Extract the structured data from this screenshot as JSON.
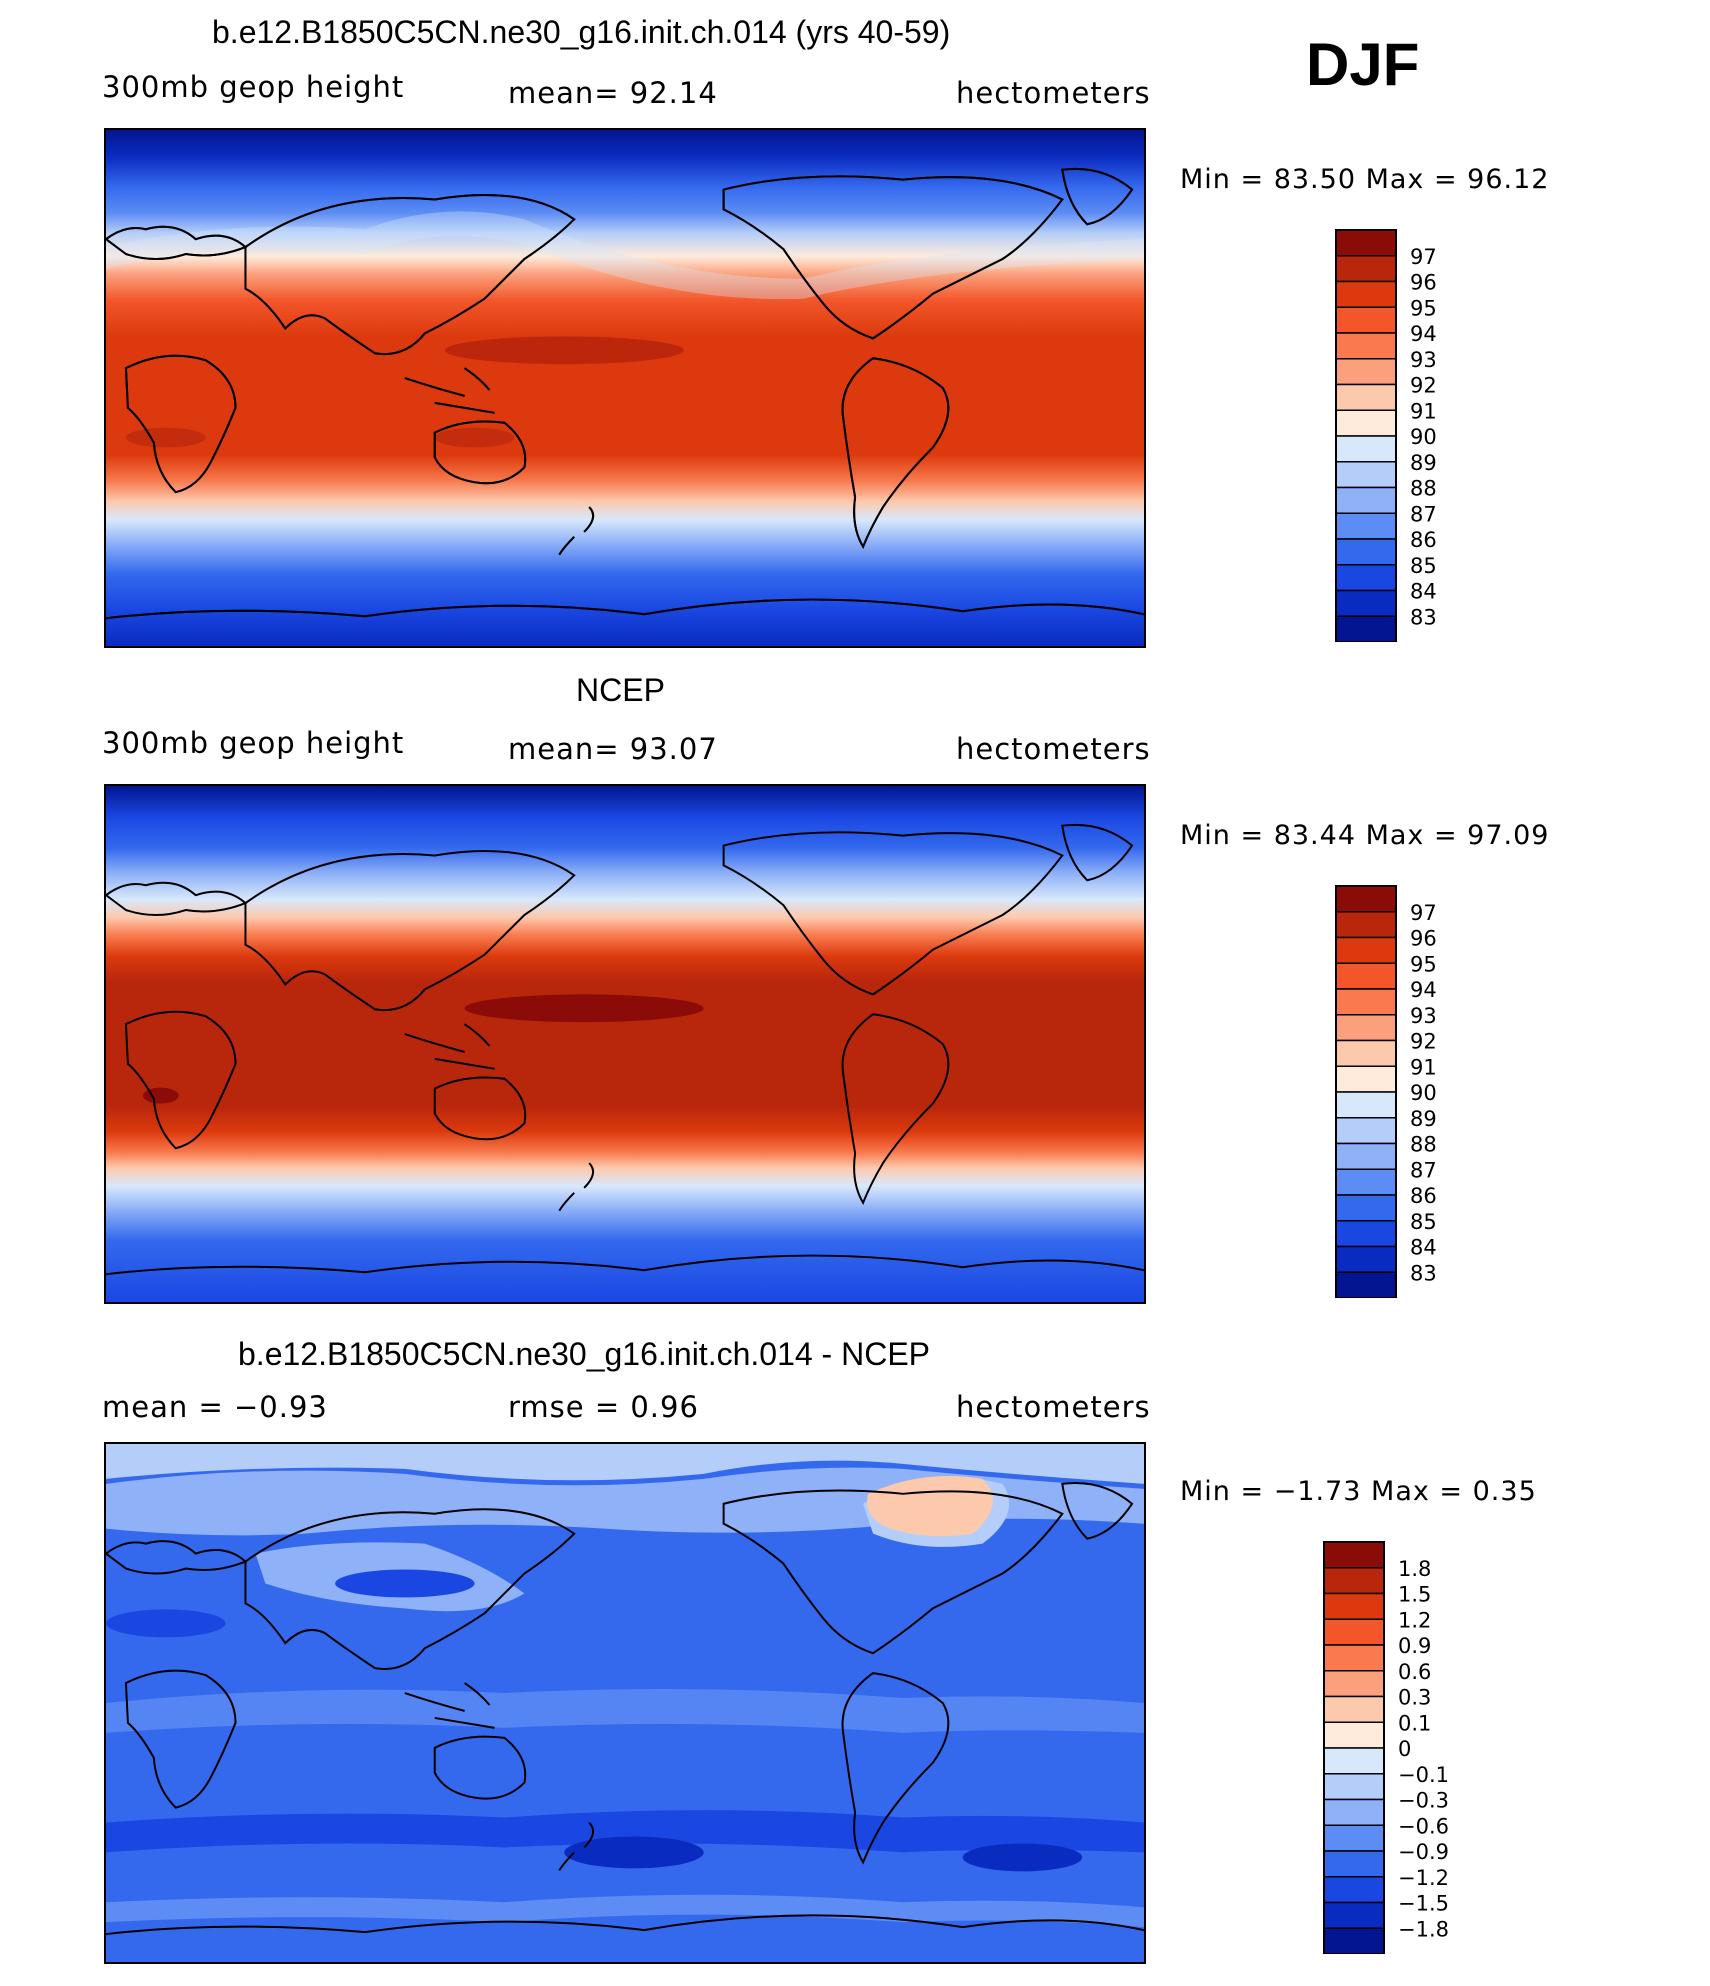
{
  "season": "DJF",
  "panels": [
    {
      "title": "b.e12.B1850C5CN.ne30_g16.init.ch.014 (yrs 40-59)",
      "left_label": "300mb  geop  height",
      "stat_label": "mean=   92.14",
      "right_label": "hectometers",
      "minmax": "Min  =    83.50  Max  =    96.12",
      "legend": [
        "97",
        "96",
        "95",
        "94",
        "93",
        "92",
        "91",
        "90",
        "89",
        "88",
        "87",
        "86",
        "85",
        "84",
        "83"
      ]
    },
    {
      "title": "NCEP",
      "left_label": "300mb  geop  height",
      "stat_label": "mean=   93.07",
      "right_label": "hectometers",
      "minmax": "Min  =    83.44  Max  =    97.09",
      "legend": [
        "97",
        "96",
        "95",
        "94",
        "93",
        "92",
        "91",
        "90",
        "89",
        "88",
        "87",
        "86",
        "85",
        "84",
        "83"
      ]
    },
    {
      "title": "b.e12.B1850C5CN.ne30_g16.init.ch.014 - NCEP",
      "left_label": "mean  =    −0.93",
      "stat_label": "rmse  =     0.96",
      "right_label": "hectometers",
      "minmax": "Min  =    −1.73  Max  =     0.35",
      "legend": [
        "1.8",
        "1.5",
        "1.2",
        "0.9",
        "0.6",
        "0.3",
        "0.1",
        "0",
        "−0.1",
        "−0.3",
        "−0.6",
        "−0.9",
        "−1.2",
        "−1.5",
        "−1.8"
      ]
    }
  ],
  "colors": {
    "palette": [
      "#8a0b08",
      "#b8260b",
      "#dc3a0e",
      "#f2562a",
      "#f87a4e",
      "#fba07c",
      "#fdc9ad",
      "#feebdc",
      "#d8e8fb",
      "#b4cef9",
      "#8eb1f8",
      "#5c8cf4",
      "#3469ee",
      "#1a47e2",
      "#0a2bbf",
      "#031590"
    ],
    "coast": "#000000"
  }
}
